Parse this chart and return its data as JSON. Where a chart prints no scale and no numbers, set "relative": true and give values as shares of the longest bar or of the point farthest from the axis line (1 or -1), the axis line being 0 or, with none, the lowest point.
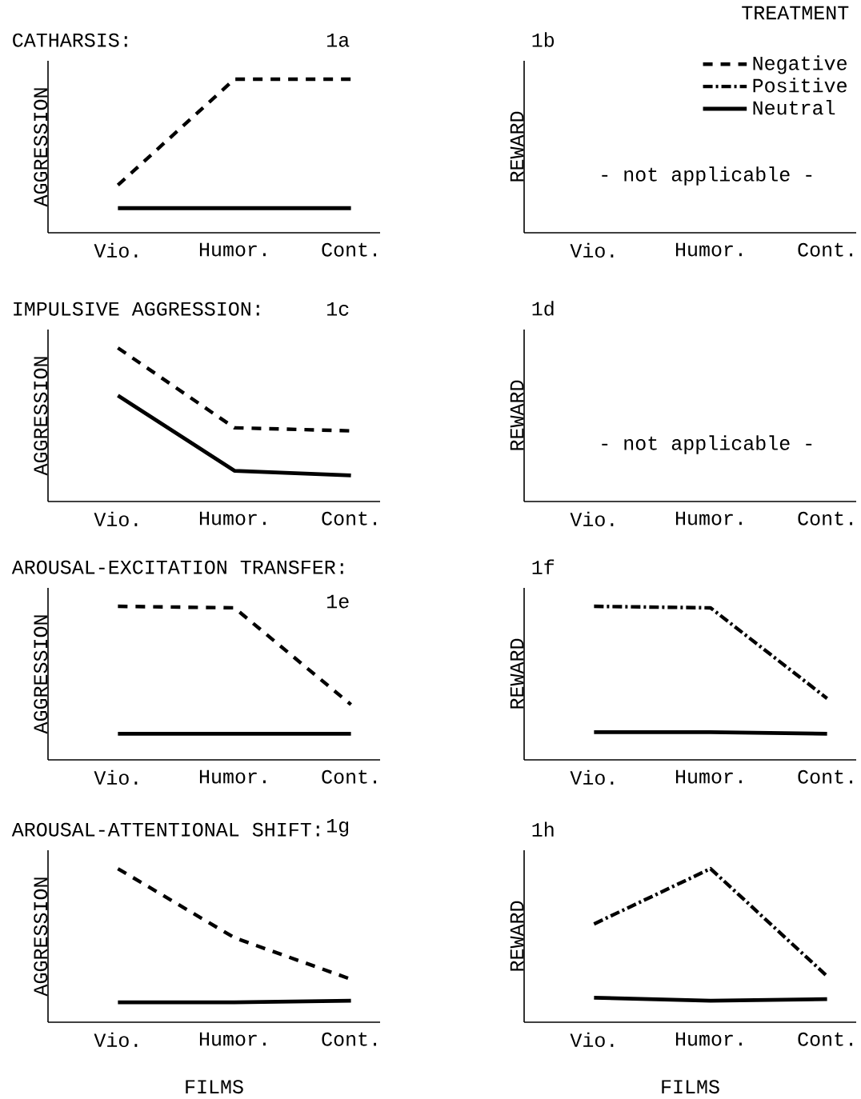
{
  "chart_data": [
    {
      "type": "line",
      "title": "CATHARSIS:",
      "ylabel": "AGGRESSION",
      "categories": [
        "Vio.",
        "Humor.",
        "Cont."
      ],
      "relative": true,
      "annotations": [
        "1a"
      ],
      "series": [
        {
          "color": "#000000",
          "line_style": "dashed",
          "values": [
            0.31,
            1,
            1
          ]
        },
        {
          "color": "#000000",
          "line_style": "solid",
          "values": [
            0.16,
            0.16,
            0.16
          ]
        }
      ]
    },
    {
      "type": "other",
      "ylabel": "REWARD",
      "categories": [
        "Vio.",
        "Humor.",
        "Cont."
      ],
      "annotations": [
        "1b",
        "- not applicable -"
      ],
      "legend": "top right",
      "legend_title": "TREATMENT",
      "series": [
        {
          "name": "Negative",
          "color": "#000000",
          "line_style": "dashed",
          "values": [
            null,
            null,
            null
          ]
        },
        {
          "name": "Positive",
          "color": "#000000",
          "line_style": "dashdot",
          "values": [
            null,
            null,
            null
          ]
        },
        {
          "name": "Neutral",
          "color": "#000000",
          "line_style": "solid",
          "values": [
            null,
            null,
            null
          ]
        }
      ]
    },
    {
      "type": "line",
      "title": "IMPULSIVE AGGRESSION:",
      "ylabel": "AGGRESSION",
      "categories": [
        "Vio.",
        "Humor.",
        "Cont."
      ],
      "relative": true,
      "annotations": [
        "1c"
      ],
      "series": [
        {
          "color": "#000000",
          "line_style": "dashed",
          "values": [
            1,
            0.48,
            0.46
          ]
        },
        {
          "color": "#000000",
          "line_style": "solid",
          "values": [
            0.69,
            0.2,
            0.17
          ]
        }
      ]
    },
    {
      "type": "other",
      "ylabel": "REWARD",
      "categories": [
        "Vio.",
        "Humor.",
        "Cont."
      ],
      "annotations": [
        "1d",
        "- not applicable -"
      ]
    },
    {
      "type": "line",
      "title": "AROUSAL-EXCITATION TRANSFER:",
      "ylabel": "AGGRESSION",
      "categories": [
        "Vio.",
        "Humor.",
        "Cont."
      ],
      "relative": true,
      "annotations": [
        "1e"
      ],
      "series": [
        {
          "color": "#000000",
          "line_style": "dashed",
          "values": [
            1,
            0.99,
            0.36
          ]
        },
        {
          "color": "#000000",
          "line_style": "solid",
          "values": [
            0.17,
            0.17,
            0.17
          ]
        }
      ]
    },
    {
      "type": "line",
      "ylabel": "REWARD",
      "categories": [
        "Vio.",
        "Humor.",
        "Cont."
      ],
      "relative": true,
      "annotations": [
        "1f"
      ],
      "series": [
        {
          "color": "#000000",
          "line_style": "dashdot",
          "values": [
            1,
            0.99,
            0.4
          ]
        },
        {
          "color": "#000000",
          "line_style": "solid",
          "values": [
            0.18,
            0.18,
            0.17
          ]
        }
      ]
    },
    {
      "type": "line",
      "title": "AROUSAL-ATTENTIONAL SHIFT:",
      "ylabel": "AGGRESSION",
      "xlabel": "FILMS",
      "categories": [
        "Vio.",
        "Humor.",
        "Cont."
      ],
      "relative": true,
      "annotations": [
        "1g"
      ],
      "series": [
        {
          "color": "#000000",
          "line_style": "dashed",
          "values": [
            1,
            0.55,
            0.28
          ]
        },
        {
          "color": "#000000",
          "line_style": "solid",
          "values": [
            0.13,
            0.13,
            0.14
          ]
        }
      ]
    },
    {
      "type": "line",
      "ylabel": "REWARD",
      "xlabel": "FILMS",
      "categories": [
        "Vio.",
        "Humor.",
        "Cont."
      ],
      "relative": true,
      "annotations": [
        "1h"
      ],
      "series": [
        {
          "color": "#000000",
          "line_style": "dashdot",
          "values": [
            0.64,
            1,
            0.3
          ]
        },
        {
          "color": "#000000",
          "line_style": "solid",
          "values": [
            0.16,
            0.14,
            0.15
          ]
        }
      ]
    }
  ]
}
